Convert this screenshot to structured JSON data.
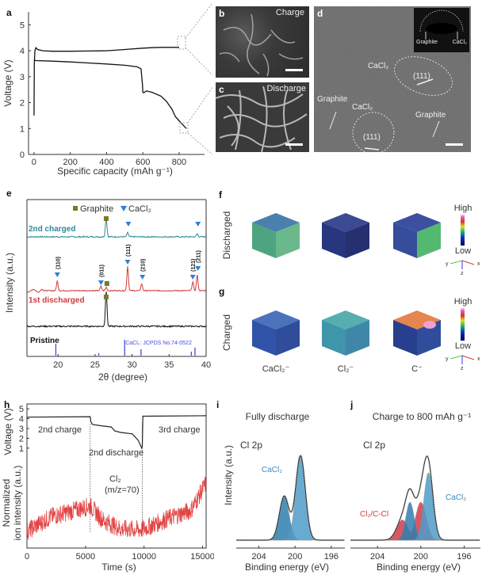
{
  "chart_data": [
    {
      "panel": "a",
      "type": "line",
      "xlabel": "Specific capacity (mAh g⁻¹)",
      "ylabel": "Voltage (V)",
      "xlim": [
        -30,
        940
      ],
      "ylim": [
        0,
        5.5
      ],
      "xticks": [
        "0",
        "200",
        "400",
        "600",
        "800"
      ],
      "xtick_values": [
        0,
        200,
        400,
        600,
        800
      ],
      "yticks": [
        "0",
        "1",
        "2",
        "3",
        "4",
        "5"
      ],
      "ytick_values": [
        0,
        1,
        2,
        3,
        4,
        5
      ],
      "series": [
        {
          "name": "charge",
          "x": [
            0,
            2,
            5,
            10,
            20,
            50,
            100,
            200,
            300,
            400,
            500,
            600,
            650,
            700,
            750,
            800
          ],
          "y": [
            1.5,
            3.5,
            4.0,
            4.12,
            4.05,
            4.0,
            3.98,
            3.98,
            3.99,
            4.0,
            4.05,
            4.1,
            4.12,
            4.13,
            4.13,
            4.13
          ]
        },
        {
          "name": "discharge",
          "x": [
            0,
            10,
            100,
            200,
            300,
            400,
            500,
            570,
            590,
            598,
            600,
            605,
            620,
            650,
            700,
            730,
            760,
            780,
            800,
            820,
            840
          ],
          "y": [
            3.65,
            3.62,
            3.6,
            3.57,
            3.53,
            3.49,
            3.44,
            3.38,
            3.3,
            2.7,
            2.4,
            2.38,
            2.45,
            2.4,
            2.25,
            2.05,
            1.75,
            1.45,
            1.3,
            1.15,
            1.0
          ]
        }
      ]
    },
    {
      "panel": "e",
      "type": "line",
      "xlabel": "2θ (degree)",
      "ylabel": "Intensity (a.u.)",
      "xlim": [
        15.8,
        40
      ],
      "xticks": [
        "20",
        "25",
        "30",
        "35",
        "40"
      ],
      "xtick_values": [
        20,
        25,
        30,
        35,
        40
      ],
      "legend": [
        {
          "label": "Graphite",
          "marker": "square",
          "color": "#7a7a1e"
        },
        {
          "label": "CaCl₂",
          "marker": "triangle-down",
          "color": "#2e7fd9"
        }
      ],
      "series": [
        {
          "name": "2nd charged",
          "color": "#2a8a9a",
          "peaks": [
            {
              "x": 26.5,
              "h": 0.9
            },
            {
              "x": 29.4,
              "h": 0.2
            },
            {
              "x": 38.8,
              "h": 0.15
            }
          ]
        },
        {
          "name": "1st discharged",
          "color": "#d03a3a",
          "peaks": [
            {
              "x": 19.9,
              "h": 0.55
            },
            {
              "x": 25.8,
              "h": 0.25
            },
            {
              "x": 26.5,
              "h": 0.2
            },
            {
              "x": 29.4,
              "h": 1.4
            },
            {
              "x": 31.3,
              "h": 0.4
            },
            {
              "x": 38.2,
              "h": 0.5
            },
            {
              "x": 38.8,
              "h": 0.9
            }
          ]
        },
        {
          "name": "Pristine",
          "color": "#111111",
          "peaks": [
            {
              "x": 26.5,
              "h": 1.5
            }
          ]
        }
      ],
      "reference": {
        "label": "CaCl₂: JCPDS No.74-0522",
        "color": "#4a4ae0",
        "lines": [
          {
            "x": 19.7,
            "h": 0.75
          },
          {
            "x": 25.5,
            "h": 0.15
          },
          {
            "x": 29.0,
            "h": 1.0
          },
          {
            "x": 31.2,
            "h": 0.4
          },
          {
            "x": 38.0,
            "h": 0.25
          },
          {
            "x": 38.5,
            "h": 0.5
          }
        ]
      },
      "annotations": [
        "(110)",
        "(011)",
        "(111)",
        "(210)",
        "(121)",
        "(211)"
      ]
    },
    {
      "panel": "h",
      "type": "line",
      "xlabel": "Time (s)",
      "ylabel_top": "Voltage (V)",
      "ylabel_bottom": [
        "Normalized",
        "ion intensity (a.u.)"
      ],
      "xlim": [
        0,
        15300
      ],
      "xticks": [
        "0",
        "5000",
        "10000",
        "15000"
      ],
      "xtick_values": [
        0,
        5000,
        10000,
        15000
      ],
      "yticks_top": [
        "1",
        "2",
        "3",
        "4",
        "5"
      ],
      "ytick_values_top": [
        1,
        2,
        3,
        4,
        5
      ],
      "voltage": {
        "x": [
          0,
          100,
          5400,
          5450,
          5600,
          6500,
          7200,
          7500,
          8000,
          9000,
          9500,
          9800,
          9850,
          9900,
          15300
        ],
        "y": [
          4.1,
          4.15,
          4.2,
          3.7,
          3.4,
          3.25,
          3.15,
          2.75,
          2.6,
          2.45,
          1.8,
          1.0,
          1.2,
          4.25,
          4.3
        ]
      },
      "ion_trend": {
        "x": [
          0,
          2000,
          5400,
          6500,
          8000,
          9800,
          12000,
          14000,
          15300
        ],
        "y": [
          0.15,
          0.32,
          0.45,
          0.28,
          0.18,
          0.17,
          0.3,
          0.4,
          0.72
        ]
      },
      "ion_color": "#dd2222",
      "dividers": [
        5400,
        9850
      ],
      "annotations": [
        "2nd charge",
        "2nd discharge",
        "3rd charge",
        "Cl₂",
        "(m/z=70)"
      ]
    },
    {
      "panel": "i",
      "type": "area",
      "title": "Fully discharge",
      "subtitle": "Cl 2p",
      "xlabel": "Binding energy (eV)",
      "ylabel": "Intensity (a.u.)",
      "xlim": [
        206.5,
        194.5
      ],
      "xticks": [
        "204",
        "200",
        "196"
      ],
      "xtick_values": [
        204,
        200,
        196
      ],
      "peaks": [
        {
          "name": "CaCl₂ 2p1/2",
          "center": 201.2,
          "height": 0.52,
          "width": 0.75,
          "color": "#2f7fb0"
        },
        {
          "name": "CaCl₂ 2p3/2",
          "center": 199.4,
          "height": 1.0,
          "width": 0.75,
          "color": "#4f9cc8"
        }
      ],
      "peak_label": "CaCl₂"
    },
    {
      "panel": "j",
      "type": "area",
      "title": "Charge to 800 mAh g⁻¹",
      "subtitle": "Cl 2p",
      "xlabel": "Binding energy (eV)",
      "xlim": [
        206.5,
        194.5
      ],
      "xticks": [
        "204",
        "200",
        "196"
      ],
      "xtick_values": [
        204,
        200,
        196
      ],
      "peaks": [
        {
          "name": "Cl₂/C-Cl a",
          "center": 201.7,
          "height": 0.24,
          "width": 0.75,
          "color": "#d23a4a"
        },
        {
          "name": "Cl₂/C-Cl b",
          "center": 200.0,
          "height": 0.45,
          "width": 0.7,
          "color": "#d23a4a"
        },
        {
          "name": "CaCl₂ a",
          "center": 201.0,
          "height": 0.45,
          "width": 0.55,
          "color": "#2f7fb0"
        },
        {
          "name": "CaCl₂ b",
          "center": 199.3,
          "height": 0.8,
          "width": 0.6,
          "color": "#4f9cc8"
        }
      ],
      "peak_labels": [
        "Cl₂/C-Cl",
        "CaCl₂"
      ]
    }
  ],
  "panels": {
    "a": {
      "label": "a"
    },
    "b": {
      "label": "b",
      "caption": "Charge"
    },
    "c": {
      "label": "c",
      "caption": "Discharge"
    },
    "d": {
      "label": "d",
      "labels": [
        "CaCl₂",
        "(111)",
        "Graphite",
        "CaCl₂",
        "(111)",
        "Graphite"
      ],
      "inset": [
        "Graphite",
        "CaCl₂"
      ]
    },
    "e": {
      "label": "e"
    },
    "f": {
      "label": "f",
      "row_label": "Discharged"
    },
    "g": {
      "label": "g",
      "row_label": "Charged",
      "columns": [
        "CaCl₂⁻",
        "Cl₂⁻",
        "C⁻"
      ]
    },
    "colorbar": {
      "high": "High",
      "low": "Low",
      "axes": [
        "x",
        "y",
        "z"
      ]
    },
    "h": {
      "label": "h"
    },
    "i": {
      "label": "i"
    },
    "j": {
      "label": "j"
    }
  }
}
